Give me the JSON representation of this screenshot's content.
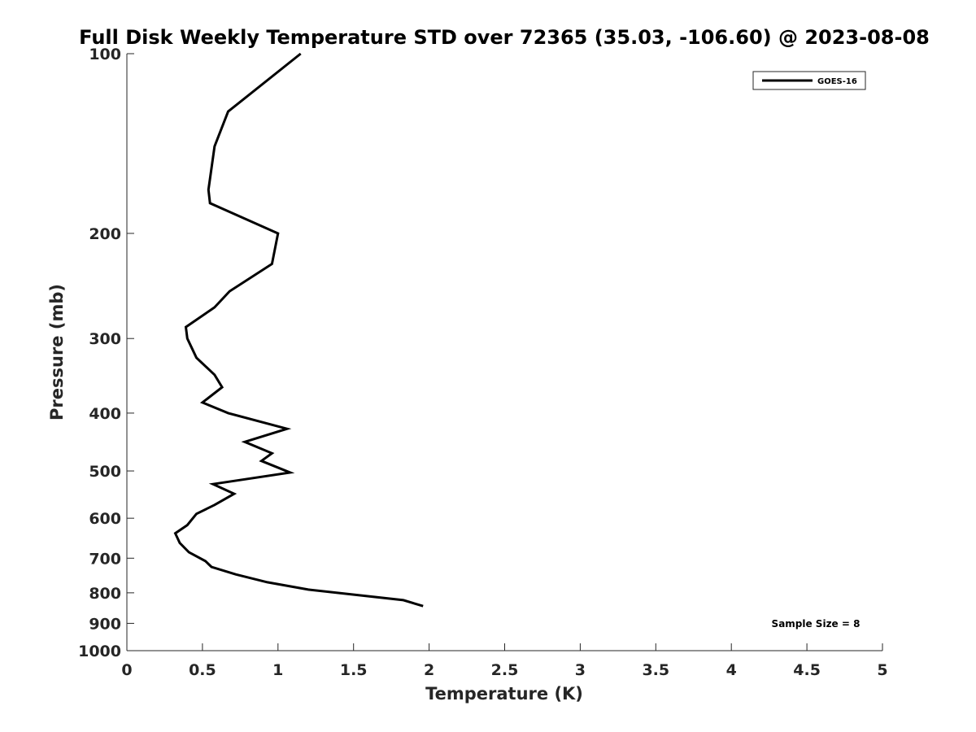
{
  "chart_data": {
    "type": "line",
    "title": "Full Disk Weekly Temperature STD over 72365 (35.03, -106.60) @ 2023-08-08",
    "xlabel": "Temperature (K)",
    "ylabel": "Pressure (mb)",
    "xlim": [
      0,
      5
    ],
    "ylim": [
      100,
      1000
    ],
    "y_scale": "log",
    "y_reversed": true,
    "x_ticks": [
      0,
      0.5,
      1,
      1.5,
      2,
      2.5,
      3,
      3.5,
      4,
      4.5,
      5
    ],
    "x_tick_labels": [
      "0",
      "0.5",
      "1",
      "1.5",
      "2",
      "2.5",
      "3",
      "3.5",
      "4",
      "4.5",
      "5"
    ],
    "y_ticks": [
      100,
      200,
      300,
      400,
      500,
      600,
      700,
      800,
      900,
      1000
    ],
    "y_tick_labels": [
      "100",
      "200",
      "300",
      "400",
      "500",
      "600",
      "700",
      "800",
      "900",
      "1000"
    ],
    "grid": false,
    "legend_position": "top-right",
    "annotation": "Sample Size = 8",
    "series": [
      {
        "name": "GOES-16",
        "color": "#000000",
        "points": [
          [
            1.15,
            100
          ],
          [
            0.67,
            125
          ],
          [
            0.58,
            143
          ],
          [
            0.54,
            169
          ],
          [
            0.55,
            178
          ],
          [
            1.0,
            200
          ],
          [
            0.96,
            225
          ],
          [
            0.68,
            250
          ],
          [
            0.58,
            266
          ],
          [
            0.39,
            287
          ],
          [
            0.4,
            300
          ],
          [
            0.46,
            323
          ],
          [
            0.58,
            345
          ],
          [
            0.63,
            362
          ],
          [
            0.5,
            384
          ],
          [
            0.67,
            400
          ],
          [
            1.06,
            425
          ],
          [
            0.78,
            447
          ],
          [
            0.96,
            467
          ],
          [
            0.89,
            481
          ],
          [
            1.08,
            503
          ],
          [
            0.57,
            526
          ],
          [
            0.71,
            546
          ],
          [
            0.58,
            570
          ],
          [
            0.46,
            590
          ],
          [
            0.4,
            616
          ],
          [
            0.32,
            636
          ],
          [
            0.35,
            660
          ],
          [
            0.41,
            684
          ],
          [
            0.52,
            708
          ],
          [
            0.56,
            724
          ],
          [
            0.72,
            745
          ],
          [
            0.93,
            768
          ],
          [
            1.2,
            790
          ],
          [
            1.83,
            823
          ],
          [
            1.96,
            842
          ]
        ]
      }
    ]
  }
}
